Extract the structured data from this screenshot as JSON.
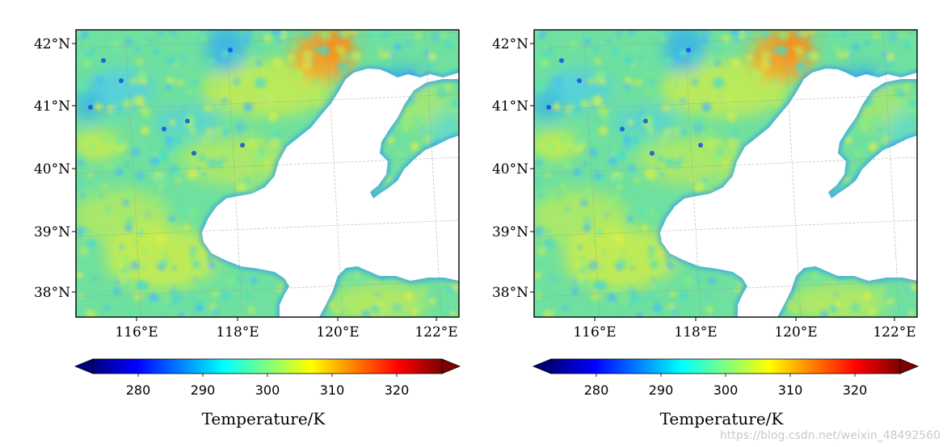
{
  "maps": [
    {
      "lat_labels": [
        "42°N",
        "41°N",
        "40°N",
        "39°N",
        "38°N"
      ],
      "lon_labels": [
        "116°E",
        "118°E",
        "120°E",
        "122°E"
      ],
      "colorbar": {
        "ticks": [
          "280",
          "290",
          "300",
          "310",
          "320"
        ],
        "label": "Temperature/K",
        "range": [
          273,
          327
        ],
        "colormap": "jet",
        "extend": "both"
      }
    },
    {
      "lat_labels": [
        "42°N",
        "41°N",
        "40°N",
        "39°N",
        "38°N"
      ],
      "lon_labels": [
        "116°E",
        "118°E",
        "120°E",
        "122°E"
      ],
      "colorbar": {
        "ticks": [
          "280",
          "290",
          "300",
          "310",
          "320"
        ],
        "label": "Temperature/K",
        "range": [
          273,
          327
        ],
        "colormap": "jet",
        "extend": "both"
      }
    }
  ],
  "colors": {
    "jet": [
      "#00007f",
      "#0000ff",
      "#007fff",
      "#00ffff",
      "#7fff7f",
      "#ffff00",
      "#ff7f00",
      "#ff0000",
      "#7f0000"
    ],
    "land_base": "#6fe0a0",
    "land_warm": "#d8ee40",
    "land_hot": "#ffa020",
    "land_cool": "#2aa8ff",
    "sea": "#ffffff"
  },
  "watermark": "https://blog.csdn.net/weixin_48492560"
}
